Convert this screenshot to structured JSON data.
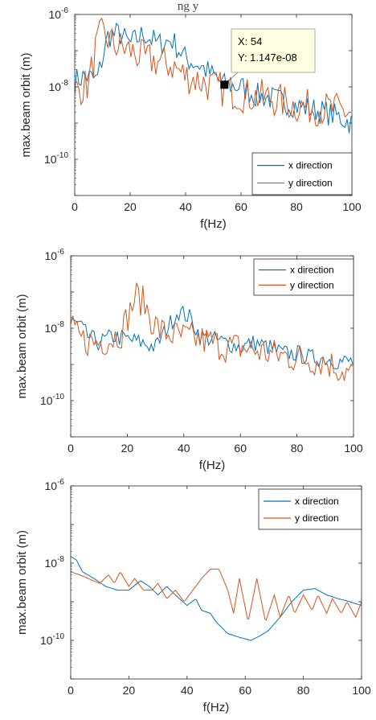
{
  "header_fragment": "ng y",
  "chart_data": [
    {
      "type": "line",
      "xlabel": "f(Hz)",
      "ylabel": "max.beam orbit  (m)",
      "xlim": [
        0,
        100
      ],
      "ylim": [
        1e-11,
        1e-06
      ],
      "yscale": "log",
      "xticks": [
        "0",
        "20",
        "40",
        "60",
        "80",
        "100"
      ],
      "yticks": [
        {
          "base": "10",
          "exp": "-10",
          "v": 1e-10
        },
        {
          "base": "10",
          "exp": "-8",
          "v": 1e-08
        },
        {
          "base": "10",
          "exp": "-6",
          "v": 1e-06
        }
      ],
      "legend": {
        "placement": "bottom-right",
        "entries": [
          "x direction",
          "y direction"
        ]
      },
      "datatip": {
        "x": 54,
        "y": 1.147e-08,
        "x_text": "X: 54",
        "y_text": "Y: 1.147e-08"
      },
      "series": [
        {
          "name": "x direction",
          "color": "#0072BD",
          "noise": 0.35,
          "points": [
            [
              0,
              1.5e-08
            ],
            [
              4,
              2e-08
            ],
            [
              8,
              1.5e-08
            ],
            [
              12,
              2.5e-07
            ],
            [
              16,
              3e-07
            ],
            [
              20,
              1.5e-07
            ],
            [
              25,
              3e-07
            ],
            [
              30,
              1.5e-07
            ],
            [
              35,
              2e-07
            ],
            [
              40,
              6e-08
            ],
            [
              45,
              4e-08
            ],
            [
              50,
              2e-08
            ],
            [
              54,
              1.147e-08
            ],
            [
              60,
              1e-08
            ],
            [
              65,
              6e-09
            ],
            [
              70,
              5e-09
            ],
            [
              75,
              4e-09
            ],
            [
              80,
              3e-09
            ],
            [
              85,
              2.5e-09
            ],
            [
              90,
              2e-09
            ],
            [
              95,
              1.5e-09
            ],
            [
              100,
              1e-09
            ]
          ]
        },
        {
          "name": "y direction",
          "color": "#D95319",
          "noise": 0.5,
          "points": [
            [
              0,
              8e-09
            ],
            [
              5,
              1.2e-08
            ],
            [
              8,
              1.5e-07
            ],
            [
              10,
              3e-07
            ],
            [
              14,
              1.5e-07
            ],
            [
              20,
              1e-07
            ],
            [
              25,
              6e-08
            ],
            [
              30,
              5e-08
            ],
            [
              35,
              4e-08
            ],
            [
              40,
              2e-08
            ],
            [
              45,
              1.5e-08
            ],
            [
              50,
              1e-08
            ],
            [
              55,
              8e-09
            ],
            [
              60,
              6e-09
            ],
            [
              70,
              5e-09
            ],
            [
              80,
              3e-09
            ],
            [
              90,
              2.5e-09
            ],
            [
              100,
              2e-09
            ]
          ]
        }
      ]
    },
    {
      "type": "line",
      "xlabel": "f(Hz)",
      "ylabel": "max.beam orbit (m)",
      "xlim": [
        0,
        100
      ],
      "ylim": [
        1e-11,
        1e-06
      ],
      "yscale": "log",
      "xticks": [
        "0",
        "20",
        "40",
        "60",
        "80",
        "100"
      ],
      "yticks": [
        {
          "base": "10",
          "exp": "-10",
          "v": 1e-10
        },
        {
          "base": "10",
          "exp": "-8",
          "v": 1e-08
        },
        {
          "base": "10",
          "exp": "-6",
          "v": 1e-06
        }
      ],
      "legend": {
        "placement": "top-right",
        "entries": [
          "x direction",
          "y direction"
        ]
      },
      "series": [
        {
          "name": "x direction",
          "color": "#0072BD",
          "noise": 0.25,
          "points": [
            [
              0,
              1.5e-08
            ],
            [
              3,
              1.2e-08
            ],
            [
              6,
              6e-09
            ],
            [
              10,
              4e-09
            ],
            [
              15,
              6e-09
            ],
            [
              20,
              5e-09
            ],
            [
              25,
              4e-09
            ],
            [
              30,
              3e-09
            ],
            [
              34,
              1e-08
            ],
            [
              38,
              3e-08
            ],
            [
              42,
              2e-08
            ],
            [
              46,
              6e-09
            ],
            [
              50,
              5e-09
            ],
            [
              55,
              4e-09
            ],
            [
              60,
              3e-09
            ],
            [
              65,
              4e-09
            ],
            [
              70,
              3e-09
            ],
            [
              75,
              2e-09
            ],
            [
              80,
              2e-09
            ],
            [
              85,
              1.5e-09
            ],
            [
              90,
              1.5e-09
            ],
            [
              95,
              1.2e-09
            ],
            [
              100,
              1.2e-09
            ]
          ]
        },
        {
          "name": "y direction",
          "color": "#D95319",
          "noise": 0.45,
          "points": [
            [
              0,
              1e-08
            ],
            [
              3,
              5e-09
            ],
            [
              8,
              4e-09
            ],
            [
              14,
              5e-09
            ],
            [
              18,
              8e-09
            ],
            [
              21,
              3e-08
            ],
            [
              23,
              8e-08
            ],
            [
              26,
              5e-08
            ],
            [
              29,
              1.5e-08
            ],
            [
              32,
              8e-09
            ],
            [
              38,
              6e-09
            ],
            [
              45,
              5e-09
            ],
            [
              50,
              4e-09
            ],
            [
              55,
              3e-09
            ],
            [
              60,
              3e-09
            ],
            [
              70,
              2e-09
            ],
            [
              80,
              1.5e-09
            ],
            [
              90,
              1.2e-09
            ],
            [
              100,
              5e-10
            ]
          ]
        }
      ]
    },
    {
      "type": "line",
      "xlabel": "f(Hz)",
      "ylabel": "max.beam orbit (m)",
      "xlim": [
        0,
        100
      ],
      "ylim": [
        1e-11,
        1e-06
      ],
      "yscale": "log",
      "xticks": [
        "0",
        "20",
        "40",
        "60",
        "80",
        "100"
      ],
      "yticks": [
        {
          "base": "10",
          "exp": "-10",
          "v": 1e-10
        },
        {
          "base": "10",
          "exp": "-8",
          "v": 1e-08
        },
        {
          "base": "10",
          "exp": "-6",
          "v": 1e-06
        }
      ],
      "legend": {
        "placement": "top-right",
        "entries": [
          "x direction",
          "y direction"
        ]
      },
      "series": [
        {
          "name": "x direction",
          "color": "#0072BD",
          "noise": 0.0,
          "points": [
            [
              0,
              1.5e-08
            ],
            [
              2,
              1.2e-08
            ],
            [
              4,
              6e-09
            ],
            [
              8,
              4e-09
            ],
            [
              12,
              2.5e-09
            ],
            [
              16,
              2e-09
            ],
            [
              20,
              2e-09
            ],
            [
              24,
              3.5e-09
            ],
            [
              27,
              2.5e-09
            ],
            [
              30,
              1.5e-09
            ],
            [
              33,
              2.5e-09
            ],
            [
              36,
              1.5e-09
            ],
            [
              40,
              8e-10
            ],
            [
              43,
              1.2e-09
            ],
            [
              45,
              6e-10
            ],
            [
              48,
              5e-10
            ],
            [
              50,
              3e-10
            ],
            [
              54,
              1.5e-10
            ],
            [
              58,
              1.2e-10
            ],
            [
              62,
              1e-10
            ],
            [
              65,
              1.3e-10
            ],
            [
              68,
              1.8e-10
            ],
            [
              72,
              4e-10
            ],
            [
              76,
              1e-09
            ],
            [
              80,
              2e-09
            ],
            [
              84,
              2.2e-09
            ],
            [
              88,
              1.5e-09
            ],
            [
              92,
              1.2e-09
            ],
            [
              96,
              1e-09
            ],
            [
              100,
              8e-10
            ]
          ]
        },
        {
          "name": "y direction",
          "color": "#D95319",
          "noise": 0.0,
          "points": [
            [
              0,
              6e-09
            ],
            [
              3,
              5e-09
            ],
            [
              6,
              4e-09
            ],
            [
              10,
              3e-09
            ],
            [
              13,
              5e-09
            ],
            [
              15,
              3e-09
            ],
            [
              17,
              6e-09
            ],
            [
              20,
              2.5e-09
            ],
            [
              22,
              4e-09
            ],
            [
              25,
              2e-09
            ],
            [
              28,
              2e-09
            ],
            [
              30,
              3e-09
            ],
            [
              33,
              1.2e-09
            ],
            [
              36,
              2e-09
            ],
            [
              39,
              1e-09
            ],
            [
              42,
              2e-09
            ],
            [
              45,
              4e-09
            ],
            [
              48,
              7e-09
            ],
            [
              51,
              7e-09
            ],
            [
              54,
              2e-09
            ],
            [
              56,
              5e-10
            ],
            [
              58,
              4e-09
            ],
            [
              61,
              3e-10
            ],
            [
              64,
              4e-09
            ],
            [
              67,
              3e-10
            ],
            [
              70,
              1.5e-09
            ],
            [
              72,
              4e-10
            ],
            [
              75,
              1.5e-09
            ],
            [
              77,
              5e-10
            ],
            [
              80,
              1.5e-09
            ],
            [
              83,
              6e-10
            ],
            [
              85,
              1.5e-09
            ],
            [
              88,
              5e-10
            ],
            [
              90,
              1.2e-09
            ],
            [
              93,
              5e-10
            ],
            [
              95,
              1e-09
            ],
            [
              98,
              4e-10
            ],
            [
              100,
              1e-09
            ]
          ]
        }
      ]
    }
  ]
}
